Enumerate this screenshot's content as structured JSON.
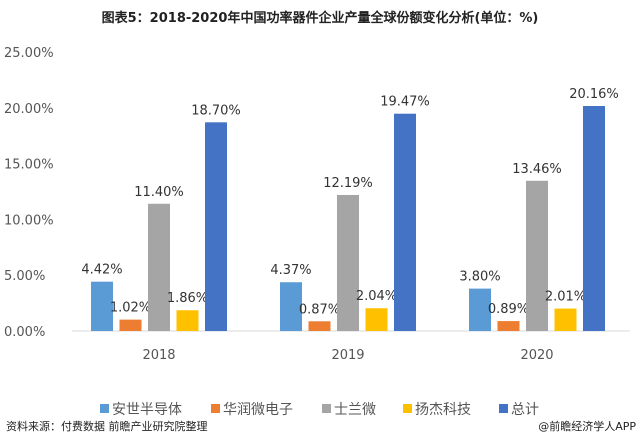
{
  "chart_data": {
    "type": "bar",
    "title": "图表5：2018-2020年中国功率器件企业产量全球份额变化分析(单位：%)",
    "categories": [
      "2018",
      "2019",
      "2020"
    ],
    "series": [
      {
        "name": "安世半导体",
        "color": "#5b9bd5",
        "values": [
          4.42,
          4.37,
          3.8
        ]
      },
      {
        "name": "华润微电子",
        "color": "#ed7d31",
        "values": [
          1.02,
          0.87,
          0.89
        ]
      },
      {
        "name": "士兰微",
        "color": "#a5a5a5",
        "values": [
          11.4,
          12.19,
          13.46
        ]
      },
      {
        "name": "扬杰科技",
        "color": "#ffc000",
        "values": [
          1.86,
          2.04,
          2.01
        ]
      },
      {
        "name": "总计",
        "color": "#4472c4",
        "values": [
          18.7,
          19.47,
          20.16
        ]
      }
    ],
    "yticks": [
      "0.00%",
      "5.00%",
      "10.00%",
      "15.00%",
      "20.00%",
      "25.00%"
    ],
    "ylim": [
      0,
      25
    ],
    "grid": false,
    "legend": "bottom"
  },
  "footer": {
    "source": "资料来源：付费数据 前瞻产业研究院整理",
    "credit": "@前瞻经济学人APP"
  }
}
